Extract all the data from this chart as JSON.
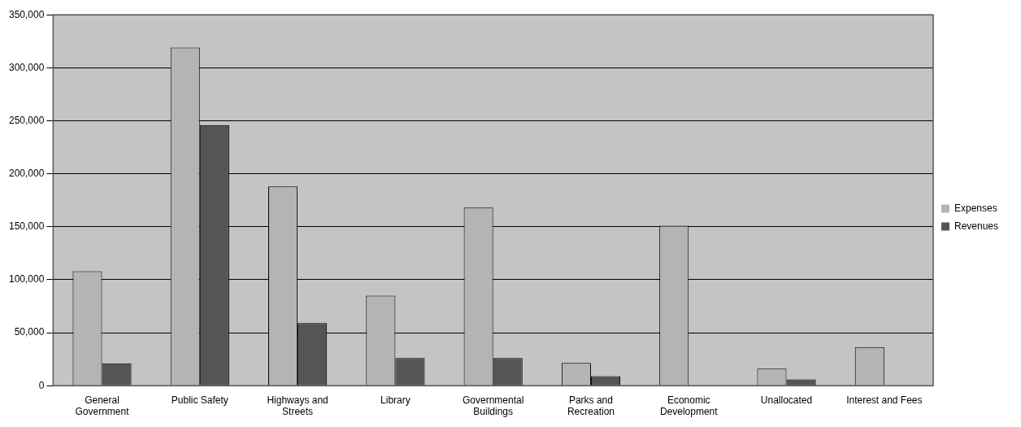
{
  "chart_data": {
    "type": "bar",
    "categories": [
      "General Government",
      "Public Safety",
      "Highways and Streets",
      "Library",
      "Governmental Buildings",
      "Parks and Recreation",
      "Economic Development",
      "Unallocated",
      "Interest and Fees"
    ],
    "series": [
      {
        "name": "Expenses",
        "color": "#b4b4b4",
        "values": [
          108000,
          319000,
          188000,
          85000,
          168000,
          21500,
          151000,
          16000,
          36500
        ]
      },
      {
        "name": "Revenues",
        "color": "#555555",
        "values": [
          21000,
          246000,
          59000,
          26000,
          26000,
          9000,
          null,
          6000,
          null
        ]
      }
    ],
    "ylim": [
      0,
      350000
    ],
    "yticks": [
      0,
      {
        "value": 50000,
        "label": "50,000"
      },
      {
        "value": 100000,
        "label": "100,000"
      },
      {
        "value": 150000,
        "label": "150,000"
      },
      {
        "value": 200000,
        "label": "200,000"
      },
      {
        "value": 250000,
        "label": "250,000"
      },
      {
        "value": 300000,
        "label": "300,000"
      },
      {
        "value": 350000,
        "label": "350,000"
      }
    ],
    "grid": "y",
    "legend": "right"
  }
}
